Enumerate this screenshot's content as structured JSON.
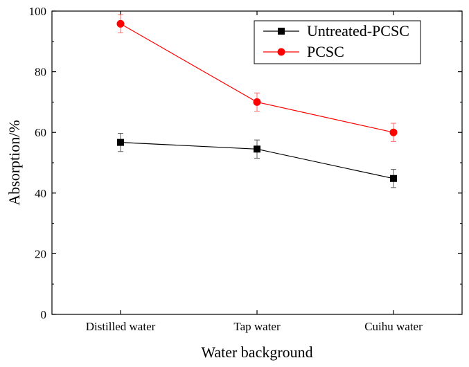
{
  "chart_data": {
    "type": "line",
    "title": "",
    "xlabel": "Water background",
    "ylabel": "Absorption/%",
    "categories": [
      "Distilled water",
      "Tap water",
      "Cuihu water"
    ],
    "ylim": [
      0,
      100
    ],
    "yticks": [
      0,
      20,
      40,
      60,
      80,
      100
    ],
    "ytick_labels": [
      "0",
      "20",
      "40",
      "60",
      "80",
      "100"
    ],
    "legend_position": "top-right",
    "grid": false,
    "series": [
      {
        "name": "Untreated-PCSC",
        "color": "#000000",
        "marker": "square",
        "values": [
          56.7,
          54.5,
          44.8
        ],
        "errors": [
          3,
          3,
          3
        ]
      },
      {
        "name": "PCSC",
        "color": "#ff0000",
        "marker": "circle",
        "values": [
          95.8,
          70,
          60
        ],
        "errors": [
          3,
          3,
          3
        ]
      }
    ]
  }
}
